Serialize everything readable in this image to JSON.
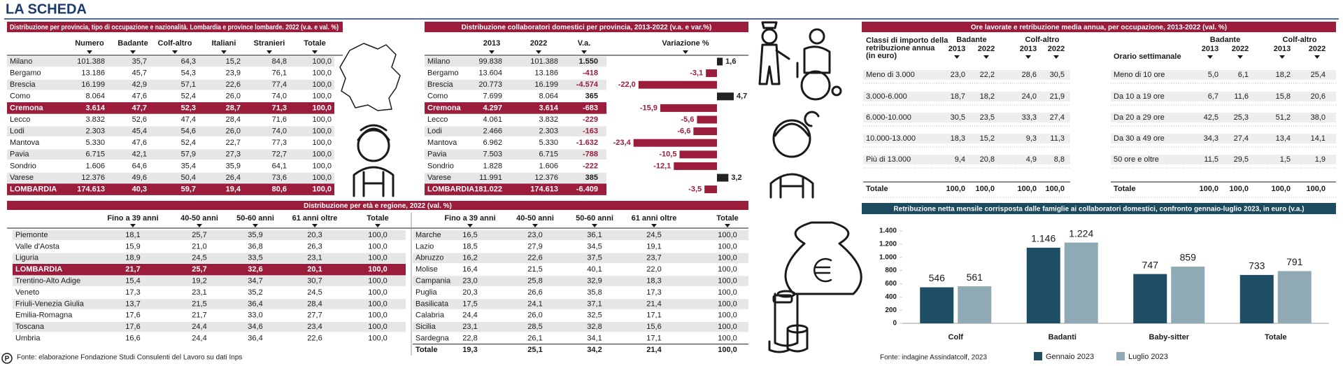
{
  "header": {
    "title": "LA SCHEDA"
  },
  "province_table": {
    "title": "Distribuzione per provincia, tipo di occupazione e nazionalità. Lombardia e province lombarde. 2022 (v.a. e val. %)",
    "columns": [
      "Numero",
      "Badante",
      "Colf-altro",
      "Italiani",
      "Stranieri",
      "Totale"
    ],
    "rows": [
      {
        "label": "Milano",
        "cells": [
          "101.388",
          "35,7",
          "64,3",
          "15,2",
          "84,8",
          "100,0"
        ]
      },
      {
        "label": "Bergamo",
        "cells": [
          "13.186",
          "45,7",
          "54,3",
          "23,9",
          "76,1",
          "100,0"
        ]
      },
      {
        "label": "Brescia",
        "cells": [
          "16.199",
          "42,9",
          "57,1",
          "22,6",
          "77,4",
          "100,0"
        ]
      },
      {
        "label": "Como",
        "cells": [
          "8.064",
          "47,6",
          "52,4",
          "26,0",
          "74,0",
          "100,0"
        ]
      },
      {
        "label": "Cremona",
        "cells": [
          "3.614",
          "47,7",
          "52,3",
          "28,7",
          "71,3",
          "100,0"
        ],
        "highlight": true
      },
      {
        "label": "Lecco",
        "cells": [
          "3.832",
          "52,6",
          "47,4",
          "28,4",
          "71,6",
          "100,0"
        ]
      },
      {
        "label": "Lodi",
        "cells": [
          "2.303",
          "45,4",
          "54,6",
          "26,0",
          "74,0",
          "100,0"
        ]
      },
      {
        "label": "Mantova",
        "cells": [
          "5.330",
          "47,6",
          "52,4",
          "22,7",
          "77,3",
          "100,0"
        ]
      },
      {
        "label": "Pavia",
        "cells": [
          "6.715",
          "42,1",
          "57,9",
          "27,3",
          "72,7",
          "100,0"
        ]
      },
      {
        "label": "Sondrio",
        "cells": [
          "1.606",
          "64,6",
          "35,4",
          "35,9",
          "64,1",
          "100,0"
        ]
      },
      {
        "label": "Varese",
        "cells": [
          "12.376",
          "49,6",
          "50,4",
          "26,4",
          "73,6",
          "100,0"
        ]
      },
      {
        "label": "LOMBARDIA",
        "cells": [
          "174.613",
          "40,3",
          "59,7",
          "19,4",
          "80,6",
          "100,0"
        ],
        "highlight": true
      }
    ]
  },
  "trend_table": {
    "title": "Distribuzione collaboratori domestici per provincia, 2013-2022 (v.a. e var.%)",
    "columns": [
      "2013",
      "2022",
      "V.a."
    ],
    "rows": [
      {
        "label": "Milano",
        "cells": [
          "99.838",
          "101.388",
          "1.550"
        ]
      },
      {
        "label": "Bergamo",
        "cells": [
          "13.604",
          "13.186",
          "-418"
        ]
      },
      {
        "label": "Brescia",
        "cells": [
          "20.773",
          "16.199",
          "-4.574"
        ]
      },
      {
        "label": "Como",
        "cells": [
          "7.699",
          "8.064",
          "365"
        ]
      },
      {
        "label": "Cremona",
        "cells": [
          "4.297",
          "3.614",
          "-683"
        ],
        "highlight": true
      },
      {
        "label": "Lecco",
        "cells": [
          "4.061",
          "3.832",
          "-229"
        ]
      },
      {
        "label": "Lodi",
        "cells": [
          "2.466",
          "2.303",
          "-163"
        ]
      },
      {
        "label": "Mantova",
        "cells": [
          "6.962",
          "5.330",
          "-1.632"
        ]
      },
      {
        "label": "Pavia",
        "cells": [
          "7.503",
          "6.715",
          "-788"
        ]
      },
      {
        "label": "Sondrio",
        "cells": [
          "1.828",
          "1.606",
          "-222"
        ]
      },
      {
        "label": "Varese",
        "cells": [
          "11.991",
          "12.376",
          "385"
        ]
      },
      {
        "label": "LOMBARDIA",
        "cells": [
          "181.022",
          "174.613",
          "-6.409"
        ],
        "highlight": true
      }
    ],
    "variation": {
      "type": "bar",
      "title": "Variazione %",
      "values": [
        1.6,
        -3.1,
        -22.0,
        4.7,
        -15.9,
        -5.6,
        -6.6,
        -23.4,
        -10.5,
        -12.1,
        3.2,
        -3.5
      ],
      "value_labels": [
        "1,6",
        "-3,1",
        "-22,0",
        "4,7",
        "-15,9",
        "-5,6",
        "-6,6",
        "-23,4",
        "-10,5",
        "-12,1",
        "3,2",
        "-3,5"
      ],
      "negative_color": "#9b1c3b",
      "positive_color": "#222222"
    }
  },
  "age_table": {
    "title": "Distribuzione per età e regione, 2022 (val. %)",
    "columns": [
      "Fino a 39 anni",
      "40-50 anni",
      "50-60 anni",
      "61 anni oltre",
      "Totale"
    ],
    "left_rows": [
      {
        "label": "Piemonte",
        "cells": [
          "18,1",
          "25,7",
          "35,9",
          "20,3",
          "100,0"
        ]
      },
      {
        "label": "Valle d'Aosta",
        "cells": [
          "15,9",
          "21,0",
          "36,8",
          "26,3",
          "100,0"
        ]
      },
      {
        "label": "Liguria",
        "cells": [
          "18,9",
          "24,5",
          "33,5",
          "23,1",
          "100,0"
        ]
      },
      {
        "label": "LOMBARDIA",
        "cells": [
          "21,7",
          "25,7",
          "32,6",
          "20,1",
          "100,0"
        ],
        "highlight": true
      },
      {
        "label": "Trentino-Alto Adige",
        "cells": [
          "15,4",
          "19,2",
          "34,7",
          "30,7",
          "100,0"
        ]
      },
      {
        "label": "Veneto",
        "cells": [
          "17,3",
          "23,1",
          "35,2",
          "24,5",
          "100,0"
        ]
      },
      {
        "label": "Friuli-Venezia Giulia",
        "cells": [
          "13,7",
          "21,5",
          "36,4",
          "28,4",
          "100,0"
        ]
      },
      {
        "label": "Emilia-Romagna",
        "cells": [
          "17,6",
          "21,7",
          "33,0",
          "27,7",
          "100,0"
        ]
      },
      {
        "label": "Toscana",
        "cells": [
          "17,6",
          "24,4",
          "34,6",
          "23,4",
          "100,0"
        ]
      },
      {
        "label": "Umbria",
        "cells": [
          "16,6",
          "24,4",
          "36,4",
          "22,6",
          "100,0"
        ]
      }
    ],
    "right_rows": [
      {
        "label": "Marche",
        "cells": [
          "16,5",
          "23,0",
          "36,1",
          "24,5",
          "100,0"
        ]
      },
      {
        "label": "Lazio",
        "cells": [
          "18,5",
          "27,9",
          "34,5",
          "19,1",
          "100,0"
        ]
      },
      {
        "label": "Abruzzo",
        "cells": [
          "16,2",
          "22,6",
          "37,5",
          "23,7",
          "100,0"
        ]
      },
      {
        "label": "Molise",
        "cells": [
          "16,4",
          "21,5",
          "40,1",
          "22,0",
          "100,0"
        ]
      },
      {
        "label": "Campania",
        "cells": [
          "23,0",
          "25,8",
          "32,9",
          "18,3",
          "100,0"
        ]
      },
      {
        "label": "Puglia",
        "cells": [
          "20,3",
          "26,6",
          "35,8",
          "17,3",
          "100,0"
        ]
      },
      {
        "label": "Basilicata",
        "cells": [
          "17,5",
          "24,1",
          "37,1",
          "21,4",
          "100,0"
        ]
      },
      {
        "label": "Calabria",
        "cells": [
          "24,4",
          "26,0",
          "32,5",
          "17,1",
          "100,0"
        ]
      },
      {
        "label": "Sicilia",
        "cells": [
          "23,1",
          "28,5",
          "32,8",
          "15,6",
          "100,0"
        ]
      },
      {
        "label": "Sardegna",
        "cells": [
          "22,8",
          "26,1",
          "34,1",
          "17,1",
          "100,0"
        ]
      },
      {
        "label": "Totale",
        "cells": [
          "19,3",
          "25,1",
          "34,2",
          "21,4",
          "100,0"
        ],
        "total": true
      }
    ]
  },
  "hours_table": {
    "title": "Ore lavorate e retribuzione media annua, per occupazione, 2013-2022 (val. %)",
    "groups": [
      "Badante",
      "Colf-altro"
    ],
    "years": [
      "2013",
      "2022"
    ],
    "left": {
      "heading_lines": [
        "Classi di importo della",
        "retribuzione annua",
        "(in euro)"
      ],
      "rows": [
        {
          "label": "Meno di 3.000",
          "cells": [
            "23,0",
            "22,2",
            "28,6",
            "30,5"
          ]
        },
        {
          "label": "3.000-6.000",
          "cells": [
            "18,7",
            "18,2",
            "24,0",
            "21,9"
          ]
        },
        {
          "label": "6.000-10.000",
          "cells": [
            "30,5",
            "23,5",
            "33,3",
            "27,4"
          ]
        },
        {
          "label": "10.000-13.000",
          "cells": [
            "18,3",
            "15,2",
            "9,3",
            "11,3"
          ]
        },
        {
          "label": "Più di 13.000",
          "cells": [
            "9,4",
            "20,8",
            "4,9",
            "8,8"
          ]
        },
        {
          "label": "Totale",
          "cells": [
            "100,0",
            "100,0",
            "100,0",
            "100,0"
          ],
          "total": true
        }
      ]
    },
    "right": {
      "heading_lines": [
        "Orario settimanale"
      ],
      "rows": [
        {
          "label": "Meno di 10 ore",
          "cells": [
            "5,0",
            "6,1",
            "18,2",
            "25,4"
          ]
        },
        {
          "label": "Da 10 a 19 ore",
          "cells": [
            "6,7",
            "11,6",
            "15,8",
            "20,6"
          ]
        },
        {
          "label": "Da 20 a 29 ore",
          "cells": [
            "42,5",
            "25,3",
            "51,2",
            "38,0"
          ]
        },
        {
          "label": "Da 30 a 49 ore",
          "cells": [
            "34,3",
            "27,4",
            "13,4",
            "14,1"
          ]
        },
        {
          "label": "50 ore e oltre",
          "cells": [
            "11,5",
            "29,5",
            "1,5",
            "1,9"
          ]
        },
        {
          "label": "Totale",
          "cells": [
            "100,0",
            "100,0",
            "100,0",
            "100,0"
          ],
          "total": true
        }
      ]
    }
  },
  "chart_data": {
    "type": "bar",
    "title": "Retribuzione netta mensile corrisposta dalle famiglie ai collaboratori domestici, confronto gennaio-luglio 2023, in euro (v.a.)",
    "categories": [
      "Colf",
      "Badanti",
      "Baby-sitter",
      "Totale"
    ],
    "series": [
      {
        "name": "Gennaio 2023",
        "color": "#1d4e63",
        "values": [
          546,
          1146,
          747,
          733
        ],
        "value_labels": [
          "546",
          "1.146",
          "747",
          "733"
        ]
      },
      {
        "name": "Luglio 2023",
        "color": "#8fa9b5",
        "values": [
          561,
          1224,
          859,
          791
        ],
        "value_labels": [
          "561",
          "1.224",
          "859",
          "791"
        ]
      }
    ],
    "ylim": [
      0,
      1400
    ],
    "yticks": [
      0,
      200,
      400,
      600,
      800,
      {
        "value": 1000,
        "label": "1.000"
      },
      {
        "value": 1200,
        "label": "1.200"
      },
      {
        "value": 1400,
        "label": "1.400"
      }
    ],
    "grid": false,
    "legend": "bottom",
    "source": "Fonte: indagine Assindatcolf, 2023"
  },
  "footer": {
    "logo": "P",
    "source": "Fonte: elaborazione Fondazione Studi Consulenti del Lavoro su dati Inps"
  }
}
